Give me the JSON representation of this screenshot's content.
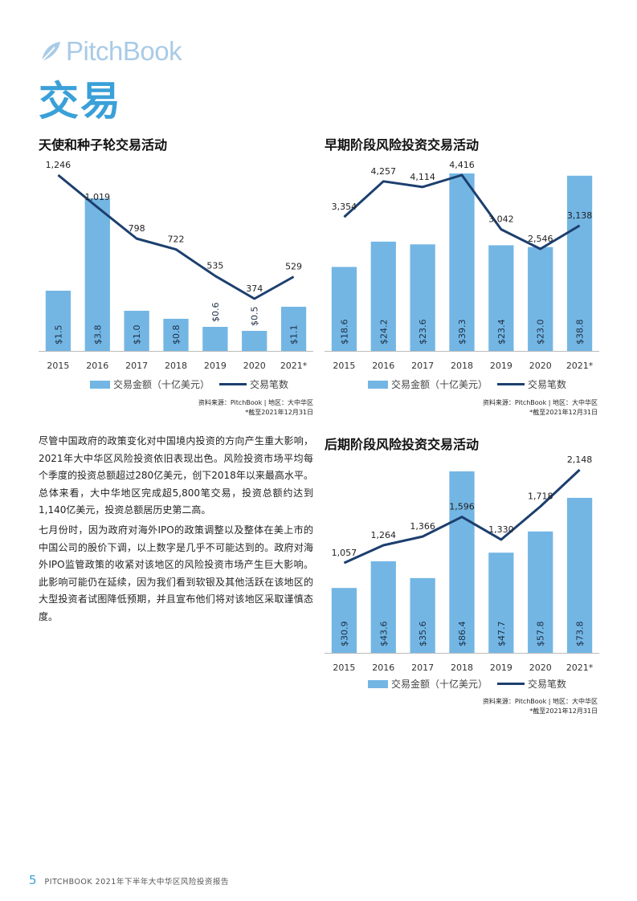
{
  "header": {
    "logo_text": "PitchBook",
    "page_title": "交易"
  },
  "colors": {
    "accent": "#3aa0d8",
    "bar": "#73b6e4",
    "line": "#1c3f6e"
  },
  "chart_data": [
    {
      "id": "angel",
      "type": "bar",
      "title": "天使和种子轮交易活动",
      "categories": [
        "2015",
        "2016",
        "2017",
        "2018",
        "2019",
        "2020",
        "2021*"
      ],
      "series": [
        {
          "name": "交易金额（十亿美元）",
          "type": "bar",
          "values": [
            1.5,
            3.8,
            1.0,
            0.8,
            0.6,
            0.5,
            1.1
          ],
          "labels": [
            "$1.5",
            "$3.8",
            "$1.0",
            "$0.8",
            "$0.6",
            "$0.5",
            "$1.1"
          ]
        },
        {
          "name": "交易笔数",
          "type": "line",
          "values": [
            1246,
            1019,
            798,
            722,
            535,
            374,
            529
          ],
          "labels": [
            "1,246",
            "1,019",
            "798",
            "722",
            "535",
            "374",
            "529"
          ]
        }
      ],
      "source": "资料来源：PitchBook | 地区：大中华区",
      "note": "*截至2021年12月31日"
    },
    {
      "id": "early",
      "type": "bar",
      "title": "早期阶段风险投资交易活动",
      "categories": [
        "2015",
        "2016",
        "2017",
        "2018",
        "2019",
        "2020",
        "2021*"
      ],
      "series": [
        {
          "name": "交易金额（十亿美元）",
          "type": "bar",
          "values": [
            18.6,
            24.2,
            23.6,
            39.3,
            23.4,
            23.0,
            38.8
          ],
          "labels": [
            "$18.6",
            "$24.2",
            "$23.6",
            "$39.3",
            "$23.4",
            "$23.0",
            "$38.8"
          ]
        },
        {
          "name": "交易笔数",
          "type": "line",
          "values": [
            3354,
            4257,
            4114,
            4416,
            3042,
            2546,
            3138
          ],
          "labels": [
            "3,354",
            "4,257",
            "4,114",
            "4,416",
            "3,042",
            "2,546",
            "3,138"
          ]
        }
      ],
      "source": "资料来源：PitchBook | 地区：大中华区",
      "note": "*截至2021年12月31日"
    },
    {
      "id": "late",
      "type": "bar",
      "title": "后期阶段风险投资交易活动",
      "categories": [
        "2015",
        "2016",
        "2017",
        "2018",
        "2019",
        "2020",
        "2021*"
      ],
      "series": [
        {
          "name": "交易金额（十亿美元）",
          "type": "bar",
          "values": [
            30.9,
            43.6,
            35.6,
            86.4,
            47.7,
            57.8,
            73.8
          ],
          "labels": [
            "$30.9",
            "$43.6",
            "$35.6",
            "$86.4",
            "$47.7",
            "$57.8",
            "$73.8"
          ]
        },
        {
          "name": "交易笔数",
          "type": "line",
          "values": [
            1057,
            1264,
            1366,
            1596,
            1330,
            1718,
            2148
          ],
          "labels": [
            "1,057",
            "1,264",
            "1,366",
            "1,596",
            "1,330",
            "1,718",
            "2,148"
          ]
        }
      ],
      "source": "资料来源：PitchBook | 地区：大中华区",
      "note": "*截至2021年12月31日"
    }
  ],
  "body": {
    "p1": "尽管中国政府的政策变化对中国境内投资的方向产生重大影响，2021年大中华区风险投资依旧表现出色。风险投资市场平均每个季度的投资总额超过280亿美元，创下2018年以来最高水平。总体来看，大中华地区完成超5,800笔交易，投资总额约达到1,140亿美元，投资总额居历史第二高。",
    "p2": "七月份时，因为政府对海外IPO的政策调整以及整体在美上市的中国公司的股价下调，以上数字是几乎不可能达到的。政府对海外IPO监管政策的收紧对该地区的风险投资市场产生巨大影响。此影响可能仍在延续，因为我们看到软银及其他活跃在该地区的大型投资者试图降低预期，并且宣布他们将对该地区采取谨慎态度。"
  },
  "footer": {
    "page_number": "5",
    "text": "PITCHBOOK 2021年下半年大中华区风险投资报告"
  }
}
